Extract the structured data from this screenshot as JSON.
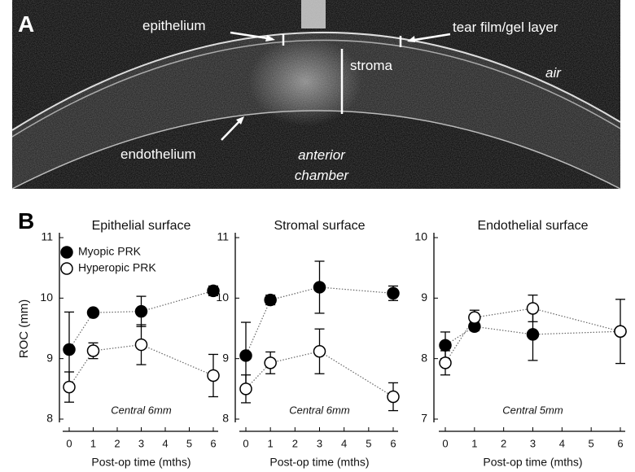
{
  "panel_a": {
    "label": "A",
    "annotations": [
      "epithelium",
      "tear film/gel layer",
      "stroma",
      "air",
      "endothelium",
      "anterior chamber"
    ]
  },
  "panel_b": {
    "label": "B"
  },
  "chart_data": [
    {
      "type": "line",
      "title": "Epithelial surface",
      "x_label": "Post-op time (mths)",
      "y_label": "ROC (mm)",
      "annotation": "Central 6mm",
      "x": [
        0,
        1,
        3,
        6
      ],
      "xlim": [
        0,
        6
      ],
      "xticks": [
        0,
        1,
        2,
        3,
        4,
        5,
        6
      ],
      "ylim": [
        8,
        11
      ],
      "yticks": [
        8,
        9,
        10,
        11
      ],
      "grid": false,
      "legend": "upper left",
      "series": [
        {
          "name": "Myopic PRK",
          "color": "#000000",
          "fill": "#000000",
          "values": [
            9.15,
            9.76,
            9.78,
            10.12
          ],
          "errors": [
            0.62,
            0.05,
            0.25,
            0.08
          ]
        },
        {
          "name": "Hyperopic PRK",
          "color": "#000000",
          "fill": "#ffffff",
          "values": [
            8.53,
            9.13,
            9.23,
            8.72
          ],
          "errors": [
            0.25,
            0.13,
            0.33,
            0.35
          ]
        }
      ]
    },
    {
      "type": "line",
      "title": "Stromal surface",
      "x_label": "Post-op time (mths)",
      "annotation": "Central 6mm",
      "x": [
        0,
        1,
        3,
        6
      ],
      "xlim": [
        0,
        6
      ],
      "xticks": [
        0,
        1,
        2,
        3,
        4,
        5,
        6
      ],
      "ylim": [
        8,
        11
      ],
      "yticks": [
        8,
        9,
        10,
        11
      ],
      "grid": false,
      "series": [
        {
          "color": "#000000",
          "fill": "#000000",
          "values": [
            9.05,
            9.97,
            10.18,
            10.08
          ],
          "errors": [
            0.55,
            0.08,
            0.43,
            0.12
          ]
        },
        {
          "color": "#000000",
          "fill": "#ffffff",
          "values": [
            8.5,
            8.93,
            9.12,
            8.37
          ],
          "errors": [
            0.23,
            0.18,
            0.37,
            0.23
          ]
        }
      ]
    },
    {
      "type": "line",
      "title": "Endothelial surface",
      "x_label": "Post-op time (mths)",
      "annotation": "Central 5mm",
      "x": [
        0,
        1,
        3,
        6
      ],
      "xlim": [
        0,
        6
      ],
      "xticks": [
        0,
        1,
        2,
        3,
        4,
        5,
        6
      ],
      "ylim": [
        7,
        10
      ],
      "yticks": [
        7,
        8,
        9,
        10
      ],
      "grid": false,
      "series": [
        {
          "color": "#000000",
          "fill": "#000000",
          "values": [
            8.22,
            8.53,
            8.4,
            8.45
          ],
          "errors": [
            0.22,
            0.07,
            0.43,
            0.53
          ]
        },
        {
          "color": "#000000",
          "fill": "#ffffff",
          "values": [
            7.93,
            8.68,
            8.83,
            8.45
          ],
          "errors": [
            0.2,
            0.12,
            0.22,
            0.05
          ]
        }
      ]
    }
  ]
}
